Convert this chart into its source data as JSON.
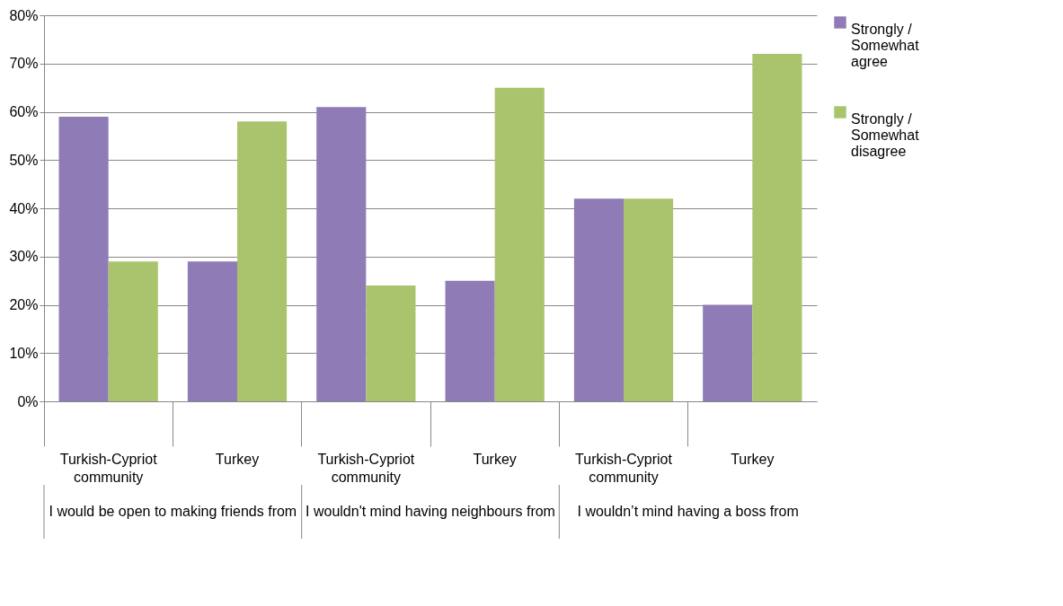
{
  "chart_data": {
    "type": "bar",
    "categories": [
      "Turkish-Cypriot community",
      "Turkey",
      "Turkish-Cypriot community",
      "Turkey",
      "Turkish-Cypriot community",
      "Turkey"
    ],
    "series": [
      {
        "name": "Strongly / Somewhat agree",
        "color": "#8f7bb5",
        "values": [
          59,
          29,
          61,
          25,
          42,
          20
        ]
      },
      {
        "name": "Strongly / Somewhat disagree",
        "color": "#a9c46c",
        "values": [
          29,
          58,
          24,
          65,
          42,
          72
        ]
      }
    ],
    "ylim": [
      0,
      80
    ],
    "yticks": [
      {
        "value": 0,
        "label": "0%"
      },
      {
        "value": 10,
        "label": "10%"
      },
      {
        "value": 20,
        "label": "20%"
      },
      {
        "value": 30,
        "label": "30%"
      },
      {
        "value": 40,
        "label": "40%"
      },
      {
        "value": 50,
        "label": "50%"
      },
      {
        "value": 60,
        "label": "60%"
      },
      {
        "value": 70,
        "label": "70%"
      },
      {
        "value": 80,
        "label": "80%"
      }
    ],
    "grid": "y",
    "legend": "right",
    "annotations": [
      "I would be open to making friends from",
      "I wouldn't mind having neighbours from",
      "I wouldn’t mind having a boss from"
    ]
  }
}
